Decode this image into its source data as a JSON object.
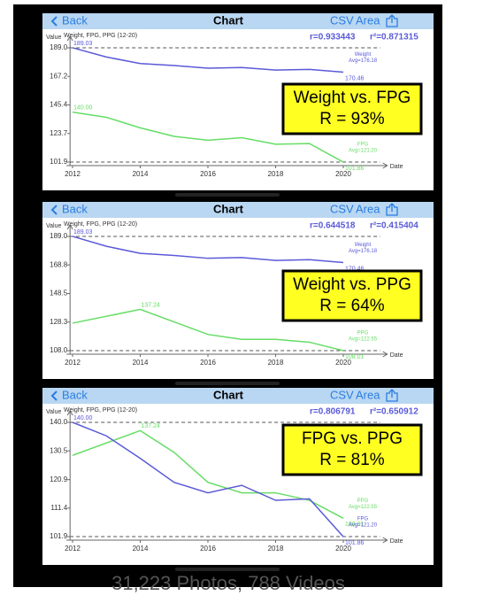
{
  "chart_data": [
    {
      "type": "line",
      "nav": {
        "back": "Back",
        "title": "Chart",
        "csv": "CSV",
        "area": "Area"
      },
      "subtitle": "Weight, FPG, PPG (12-20)",
      "ylabel": "Value",
      "xlabel": "Date",
      "r_label": "r=0.933443",
      "r2_label": "r²=0.871315",
      "callout": [
        "Weight vs. FPG",
        "R = 93%"
      ],
      "xlim": [
        2011.9,
        2021.3
      ],
      "xticks": [
        2012,
        2014,
        2016,
        2018,
        2020
      ],
      "ylim": [
        101.9,
        189
      ],
      "yticks": [
        101.9,
        123.7,
        145.4,
        167.2,
        {
          "value": 189,
          "label": "189.0"
        }
      ],
      "series": [
        {
          "name": "Weight",
          "avg_label": "Avg=176.18",
          "color": "#5a5ad8",
          "x": [
            2012,
            2013,
            2014,
            2015,
            2016,
            2017,
            2018,
            2019,
            2020
          ],
          "values": [
            189.03,
            182,
            177,
            175.5,
            173.5,
            174,
            172,
            172.5,
            170.46
          ],
          "value_labels": [
            "189.03",
            null,
            null,
            null,
            null,
            null,
            null,
            null,
            "170.46"
          ]
        },
        {
          "name": "FPG",
          "avg_label": "Avg=121.20",
          "color": "#66dd66",
          "x": [
            2012,
            2013,
            2014,
            2015,
            2016,
            2017,
            2018,
            2019,
            2020
          ],
          "values": [
            140,
            136,
            128,
            121.5,
            118.5,
            120.5,
            115.5,
            116,
            101.86
          ],
          "value_labels": [
            "140.00",
            null,
            null,
            null,
            null,
            null,
            null,
            null,
            "101.86"
          ]
        }
      ]
    },
    {
      "type": "line",
      "nav": {
        "back": "Back",
        "title": "Chart",
        "csv": "CSV",
        "area": "Area"
      },
      "subtitle": "Weight, FPG, PPG (12-20)",
      "ylabel": "Value",
      "xlabel": "Date",
      "r_label": "r=0.644518",
      "r2_label": "r²=0.415404",
      "callout": [
        "Weight vs. PPG",
        "R = 64%"
      ],
      "xlim": [
        2011.9,
        2021.3
      ],
      "xticks": [
        2012,
        2014,
        2016,
        2018,
        2020
      ],
      "ylim": [
        108,
        189
      ],
      "yticks": [
        {
          "value": 108,
          "label": "108.0"
        },
        128.3,
        148.5,
        168.8,
        {
          "value": 189,
          "label": "189.0"
        }
      ],
      "series": [
        {
          "name": "Weight",
          "avg_label": "Avg=176.18",
          "color": "#5a5ad8",
          "x": [
            2012,
            2013,
            2014,
            2015,
            2016,
            2017,
            2018,
            2019,
            2020
          ],
          "values": [
            189.03,
            182,
            177,
            175.5,
            173.5,
            174,
            172,
            172.5,
            170.46
          ],
          "value_labels": [
            "189.03",
            null,
            null,
            null,
            null,
            null,
            null,
            null,
            "170.46"
          ]
        },
        {
          "name": "PPG",
          "avg_label": "Avg=122.55",
          "color": "#66dd66",
          "x": [
            2012,
            2014,
            2016,
            2017,
            2018,
            2019,
            2020
          ],
          "values": [
            127.5,
            137.24,
            119.5,
            116,
            116,
            114,
            108.01
          ],
          "value_labels": [
            null,
            "137.24",
            null,
            null,
            null,
            null,
            "108.01"
          ]
        }
      ]
    },
    {
      "type": "line",
      "nav": {
        "back": "Back",
        "title": "Chart",
        "csv": "CSV",
        "area": "Area"
      },
      "subtitle": "Weight, FPG, PPG (12-20)",
      "ylabel": "Value",
      "xlabel": "Date",
      "r_label": "r=0.806791",
      "r2_label": "r²=0.650912",
      "callout": [
        "FPG vs. PPG",
        "R = 81%"
      ],
      "xlim": [
        2011.9,
        2021.3
      ],
      "xticks": [
        2012,
        2014,
        2016,
        2018,
        2020
      ],
      "ylim": [
        101.9,
        140
      ],
      "yticks": [
        101.9,
        111.4,
        120.9,
        130.5,
        {
          "value": 140,
          "label": "140.0"
        }
      ],
      "series": [
        {
          "name": "PPG",
          "avg_label": "Avg=122.55",
          "color": "#66dd66",
          "x": [
            2012,
            2014,
            2015,
            2016,
            2017,
            2018,
            2019,
            2020
          ],
          "values": [
            129,
            137.24,
            130,
            120,
            116.5,
            116.5,
            114,
            108.01
          ],
          "value_labels": [
            null,
            "137.24",
            null,
            null,
            null,
            null,
            null,
            "108.01"
          ]
        },
        {
          "name": "FPG",
          "avg_label": "Avg=121.20",
          "color": "#5a5ad8",
          "x": [
            2012,
            2013,
            2014,
            2015,
            2016,
            2017,
            2018,
            2019,
            2020
          ],
          "values": [
            140,
            135.5,
            128,
            120,
            116.5,
            119,
            114,
            114.5,
            101.86
          ],
          "value_labels": [
            "140.00",
            null,
            null,
            null,
            null,
            null,
            null,
            null,
            "101.86"
          ]
        }
      ]
    }
  ],
  "footer": "31,223 Photos, 788 Videos"
}
